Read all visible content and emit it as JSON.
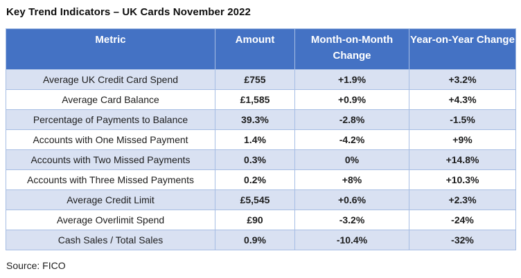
{
  "title": "Key Trend Indicators – UK Cards November 2022",
  "source_label": "Source: FICO",
  "colors": {
    "header_bg": "#4472C4",
    "header_text": "#FFFFFF",
    "row_alt_bg": "#D9E1F2",
    "row_bg": "#FFFFFF",
    "cell_border": "#A6BDE4",
    "outer_border": "#7E9FD6",
    "text": "#1C1C1C"
  },
  "chart_data": {
    "type": "table",
    "title": "Key Trend Indicators – UK Cards November 2022",
    "columns": [
      "Metric",
      "Amount",
      "Month-on-Month Change",
      "Year-on-Year Change"
    ],
    "rows": [
      {
        "metric": "Average UK Credit Card Spend",
        "amount": "£755",
        "mom_change": "+1.9%",
        "yoy_change": "+3.2%"
      },
      {
        "metric": "Average Card Balance",
        "amount": "£1,585",
        "mom_change": "+0.9%",
        "yoy_change": "+4.3%"
      },
      {
        "metric": "Percentage of Payments to Balance",
        "amount": "39.3%",
        "mom_change": "-2.8%",
        "yoy_change": "-1.5%"
      },
      {
        "metric": "Accounts with One Missed Payment",
        "amount": "1.4%",
        "mom_change": "-4.2%",
        "yoy_change": "+9%"
      },
      {
        "metric": "Accounts with Two Missed Payments",
        "amount": "0.3%",
        "mom_change": "0%",
        "yoy_change": "+14.8%"
      },
      {
        "metric": "Accounts with Three Missed Payments",
        "amount": "0.2%",
        "mom_change": "+8%",
        "yoy_change": "+10.3%"
      },
      {
        "metric": "Average Credit Limit",
        "amount": "£5,545",
        "mom_change": "+0.6%",
        "yoy_change": "+2.3%"
      },
      {
        "metric": "Average Overlimit Spend",
        "amount": "£90",
        "mom_change": "-3.2%",
        "yoy_change": "-24%"
      },
      {
        "metric": "Cash Sales / Total Sales",
        "amount": "0.9%",
        "mom_change": "-10.4%",
        "yoy_change": "-32%"
      }
    ],
    "notes": "Alternating light-blue/white striped rows; source credit below table"
  }
}
